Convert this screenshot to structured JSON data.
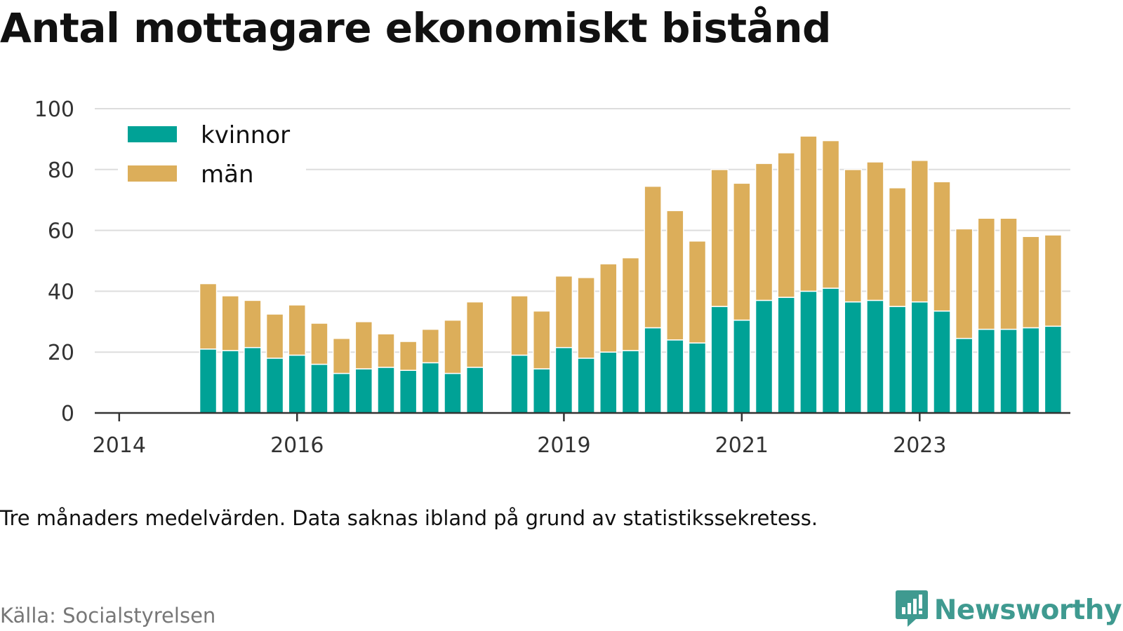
{
  "header": {
    "title": "Antal mottagare ekonomiskt bistånd"
  },
  "footer": {
    "note": "Tre månaders medelvärden. Data saknas ibland på grund av statistikssekretess.",
    "source": "Källa: Socialstyrelsen",
    "brand": "Newsworthy",
    "brand_icon": "newsworthy-logo-icon"
  },
  "colors": {
    "kvinnor": "#00a296",
    "man": "#dcae5a",
    "grid": "#dddddd",
    "axis": "#333333",
    "brand": "#3f9a90"
  },
  "chart_data": {
    "type": "bar",
    "stacked": true,
    "x_unit": "quarter",
    "x": [
      "2014-Q2",
      "2014-Q3",
      "2014-Q4",
      "2015-Q1",
      "2015-Q2",
      "2015-Q3",
      "2015-Q4",
      "2016-Q1",
      "2016-Q2",
      "2016-Q3",
      "2016-Q4",
      "2017-Q1",
      "2017-Q2",
      "2017-Q3",
      "2017-Q4",
      "2018-Q1",
      "2018-Q2",
      "2018-Q3",
      "2018-Q4",
      "2019-Q1",
      "2019-Q2",
      "2019-Q3",
      "2019-Q4",
      "2020-Q1",
      "2020-Q2",
      "2020-Q3",
      "2020-Q4",
      "2021-Q1",
      "2021-Q2",
      "2021-Q3",
      "2021-Q4",
      "2022-Q1",
      "2022-Q2",
      "2022-Q3",
      "2022-Q4",
      "2023-Q1",
      "2023-Q2",
      "2023-Q3",
      "2023-Q4",
      "2024-Q1",
      "2024-Q2",
      "2024-Q3",
      "2024-Q4"
    ],
    "series": [
      {
        "name": "kvinnor",
        "values": [
          null,
          null,
          null,
          21,
          20.5,
          21.5,
          18,
          19,
          16,
          13,
          14.5,
          15,
          14,
          16.5,
          13,
          15,
          null,
          19,
          14.5,
          21.5,
          18,
          20,
          20.5,
          28,
          24,
          23,
          35,
          30.5,
          37,
          38,
          40,
          41,
          36.5,
          37,
          35,
          36.5,
          33.5,
          24.5,
          27.5,
          27.5,
          28,
          28.5,
          null
        ]
      },
      {
        "name": "män",
        "values": [
          null,
          null,
          null,
          21.5,
          18,
          15.5,
          14.5,
          16.5,
          13.5,
          11.5,
          15.5,
          11,
          9.5,
          11,
          17.5,
          21.5,
          null,
          19.5,
          19,
          23.5,
          26.5,
          29,
          30.5,
          46.5,
          42.5,
          33.5,
          45,
          45,
          45,
          47.5,
          51,
          48.5,
          43.5,
          45.5,
          39,
          46.5,
          42.5,
          36,
          36.5,
          36.5,
          30,
          30,
          null
        ]
      }
    ],
    "x_ticks": [
      {
        "x": "2014-Q1",
        "label": "2014"
      },
      {
        "x": "2016-Q1",
        "label": "2016"
      },
      {
        "x": "2019-Q1",
        "label": "2019"
      },
      {
        "x": "2021-Q1",
        "label": "2021"
      },
      {
        "x": "2023-Q1",
        "label": "2023"
      }
    ],
    "y_ticks": [
      "0",
      "20",
      "40",
      "60",
      "80",
      "100"
    ],
    "ylim": [
      0,
      100
    ],
    "grid": "horizontal",
    "legend": {
      "position": "top-left",
      "entries": [
        "kvinnor",
        "män"
      ]
    }
  }
}
